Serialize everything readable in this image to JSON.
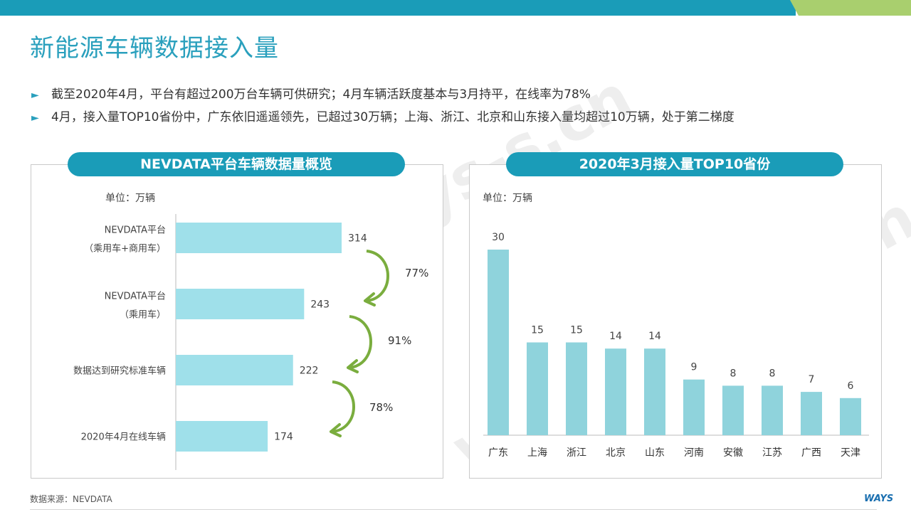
{
  "title": "新能源车辆数据接入量",
  "bullets": [
    "截至2020年4月，平台有超过200万台车辆可供研究；4月车辆活跃度基本与3月持平，在线率为78%",
    "4月，接入量TOP10省份中，广东依旧遥遥领先，已超过30万辆；上海、浙江、北京和山东接入量均超过10万辆，处于第二梯度"
  ],
  "colors": {
    "accent": "#1a9cb8",
    "bar_left": "#9fe0ea",
    "bar_right": "#8fd3dc",
    "arrow": "#7aad3e",
    "topbar": "#1a9cb8",
    "topbar_green": "#a9cf6e"
  },
  "watermark": "www.ways-s.cn",
  "footer": {
    "source": "数据来源：NEVDATA",
    "logo": "WAYS"
  },
  "chart_data": [
    {
      "type": "bar",
      "orientation": "horizontal",
      "title": "NEVDATA平台车辆数据量概览",
      "unit_label": "单位：万辆",
      "categories": [
        [
          "NEVDATA平台",
          "（乘用车+商用车）"
        ],
        [
          "NEVDATA平台",
          "（乘用车）"
        ],
        [
          "数据达到研究标准车辆"
        ],
        [
          "2020年4月在线车辆"
        ]
      ],
      "values": [
        314,
        243,
        222,
        174
      ],
      "xlim": [
        0,
        400
      ],
      "ratios": [
        "77%",
        "91%",
        "78%"
      ]
    },
    {
      "type": "bar",
      "orientation": "vertical",
      "title": "2020年3月接入量TOP10省份",
      "unit_label": "单位：万辆",
      "categories": [
        "广东",
        "上海",
        "浙江",
        "北京",
        "山东",
        "河南",
        "安徽",
        "江苏",
        "广西",
        "天津"
      ],
      "values": [
        30,
        15,
        15,
        14,
        14,
        9,
        8,
        8,
        7,
        6
      ],
      "ylim": [
        0,
        30
      ]
    }
  ]
}
